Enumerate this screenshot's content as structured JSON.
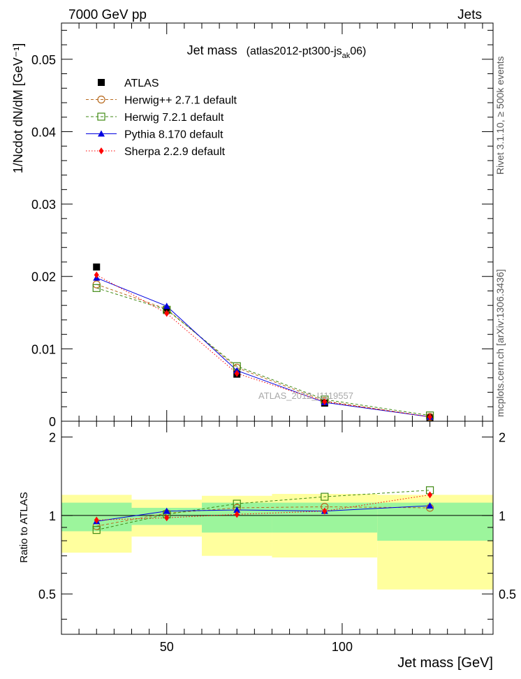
{
  "header": {
    "left": "7000 GeV pp",
    "right": "Jets"
  },
  "side_labels": {
    "rivet": "Rivet 3.1.10, ≥ 500k events",
    "mcplots": "mcplots.cern.ch [arXiv:1306.3436]"
  },
  "watermark": "ATLAS_2012_I1119557",
  "chart_data": [
    {
      "type": "scatter",
      "panel": "main",
      "title": "Jet mass",
      "title_detail_prefix": "(atlas2012-pt300-js",
      "title_detail_sub": "ak",
      "title_detail_suffix": "06)",
      "ylabel": "1/Ncdot dN/dM [GeV⁻¹]",
      "xlabel": "Jet mass [GeV]",
      "xlim": [
        20,
        143
      ],
      "ylim": [
        0,
        0.055
      ],
      "y_ticks": [
        0,
        0.01,
        0.02,
        0.03,
        0.04,
        0.05
      ],
      "y_tick_labels": [
        "0",
        "0.01",
        "0.02",
        "0.03",
        "0.04",
        "0.05"
      ],
      "x": [
        30,
        50,
        70,
        95,
        125
      ],
      "series": [
        {
          "name": "ATLAS",
          "color": "#000000",
          "marker": "filled-square",
          "values": [
            0.0213,
            0.0153,
            0.0065,
            0.0025,
            0.0005
          ]
        },
        {
          "name": "Herwig++ 2.7.1 default",
          "color": "#b86a1e",
          "marker": "open-circle",
          "line": "dashed",
          "values": [
            0.0189,
            0.0155,
            0.0074,
            0.0028,
            0.0006
          ]
        },
        {
          "name": "Herwig 7.2.1 default",
          "color": "#3f8a13",
          "marker": "open-square",
          "line": "dashed",
          "values": [
            0.0184,
            0.0154,
            0.0076,
            0.003,
            0.0008
          ]
        },
        {
          "name": "Pythia 8.170 default",
          "color": "#0000e0",
          "marker": "filled-triangle",
          "line": "solid",
          "values": [
            0.0198,
            0.0159,
            0.007,
            0.0026,
            0.0006
          ]
        },
        {
          "name": "Sherpa 2.2.9 default",
          "color": "#ff0000",
          "marker": "filled-diamond",
          "line": "dotted",
          "values": [
            0.0202,
            0.0149,
            0.0066,
            0.0027,
            0.0006
          ]
        }
      ]
    },
    {
      "type": "scatter",
      "panel": "ratio",
      "ylabel": "Ratio to ATLAS",
      "xlabel": "Jet mass [GeV]",
      "xlim": [
        20,
        143
      ],
      "ylim": [
        0.35,
        2.3
      ],
      "y_ticks": [
        0.5,
        1,
        2
      ],
      "y_tick_labels": [
        "0.5",
        "1",
        "2"
      ],
      "x_ticks": [
        50,
        100
      ],
      "x_tick_labels": [
        "50",
        "100"
      ],
      "bands": [
        {
          "x0": 20,
          "x1": 40,
          "inner": [
            0.87,
            1.12
          ],
          "outer": [
            0.72,
            1.2
          ]
        },
        {
          "x0": 40,
          "x1": 60,
          "inner": [
            0.92,
            1.07
          ],
          "outer": [
            0.83,
            1.15
          ]
        },
        {
          "x0": 60,
          "x1": 80,
          "inner": [
            0.86,
            1.12
          ],
          "outer": [
            0.7,
            1.19
          ]
        },
        {
          "x0": 80,
          "x1": 110,
          "inner": [
            0.86,
            1.12
          ],
          "outer": [
            0.69,
            1.21
          ]
        },
        {
          "x0": 110,
          "x1": 143,
          "inner": [
            0.8,
            1.12
          ],
          "outer": [
            0.52,
            1.2
          ]
        }
      ],
      "band_colors": {
        "inner": "#9cf59c",
        "outer": "#ffff9e"
      },
      "x": [
        30,
        50,
        70,
        95,
        125
      ],
      "series": [
        {
          "name": "Herwig++ 2.7.1 default",
          "color": "#b86a1e",
          "marker": "open-circle",
          "line": "dashed",
          "values": [
            0.91,
            1.02,
            1.07,
            1.08,
            1.07
          ]
        },
        {
          "name": "Herwig 7.2.1 default",
          "color": "#3f8a13",
          "marker": "open-square",
          "line": "dashed",
          "values": [
            0.88,
            1.01,
            1.11,
            1.18,
            1.25
          ]
        },
        {
          "name": "Pythia 8.170 default",
          "color": "#0000e0",
          "marker": "filled-triangle",
          "line": "solid",
          "values": [
            0.95,
            1.04,
            1.05,
            1.04,
            1.09
          ]
        },
        {
          "name": "Sherpa 2.2.9 default",
          "color": "#ff0000",
          "marker": "filled-diamond",
          "line": "dotted",
          "values": [
            0.96,
            0.98,
            1.01,
            1.04,
            1.2
          ]
        }
      ]
    }
  ]
}
